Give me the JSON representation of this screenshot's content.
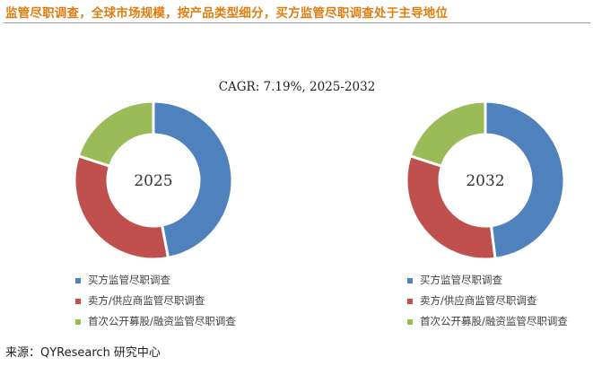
{
  "title": "监管尽职调查，全球市场规模，按产品类型细分，买方监管尽职调查处于主导地位",
  "source": "来源：QYResearch 研究中心",
  "chart_data": {
    "type": "pie",
    "donut": true,
    "annotation": "CAGR:  7.19%, 2025-2032",
    "legend_placement": "below",
    "categories": [
      "买方监管尽职调查",
      "卖方/供应商监管尽职调查",
      "首次公开募股/融资监管尽职调查"
    ],
    "colors": [
      "#4f81bd",
      "#c0504d",
      "#9bbb59"
    ],
    "charts": [
      {
        "label": "2025",
        "values": [
          47,
          33,
          20
        ]
      },
      {
        "label": "2032",
        "values": [
          48,
          32,
          20
        ]
      }
    ]
  }
}
